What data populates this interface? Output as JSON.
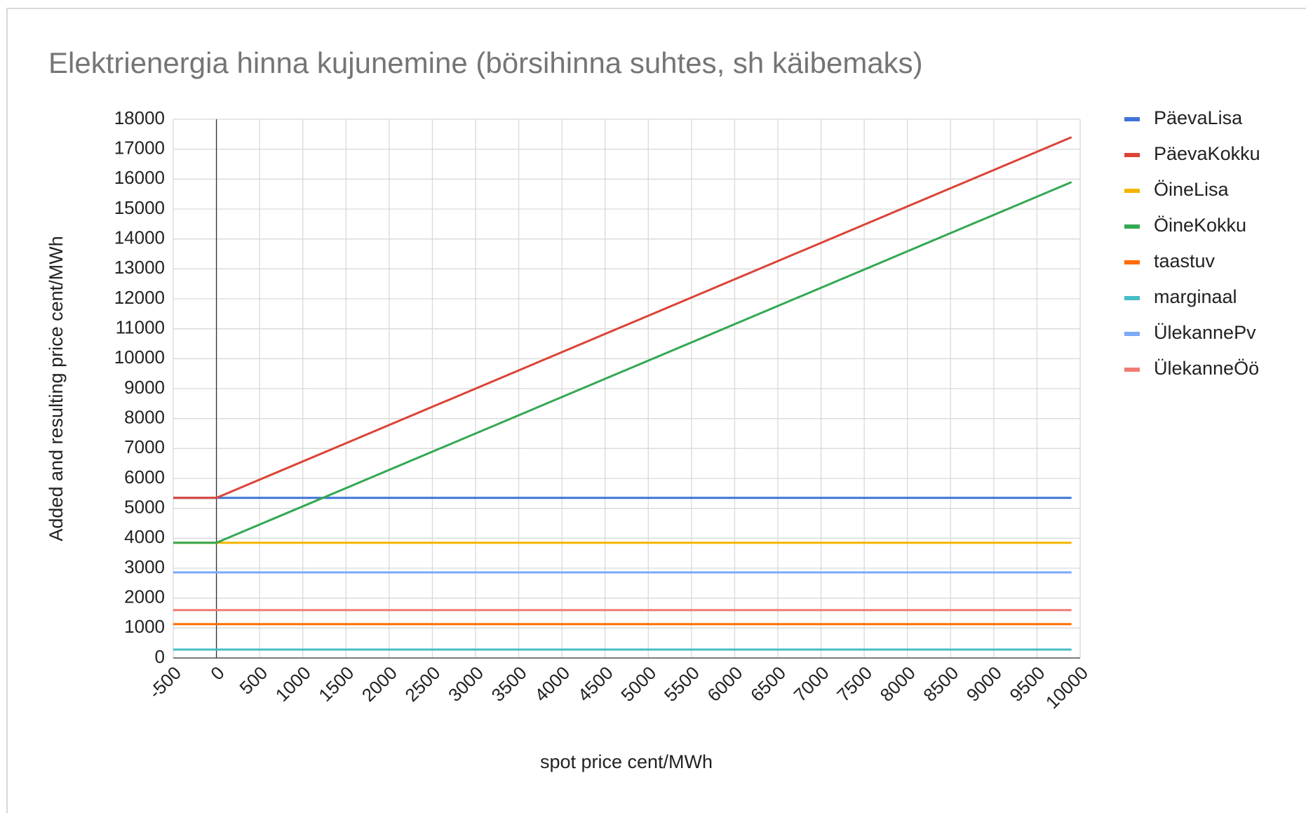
{
  "chart_data": {
    "type": "line",
    "title": "Elektrienergia hinna kujunemine (börsihinna suhtes, sh käibemaks)",
    "xlabel": "spot price cent/MWh",
    "ylabel": "Added and resulting price cent/MWh",
    "x": [
      -500,
      0,
      9900
    ],
    "series": [
      {
        "name": "PäevaLisa",
        "color": "#3f74d6",
        "values": [
          5350,
          5350,
          5350
        ]
      },
      {
        "name": "PäevaKokku",
        "color": "#db4437",
        "values": [
          5350,
          5350,
          17400
        ]
      },
      {
        "name": "ÖineLisa",
        "color": "#f4b400",
        "values": [
          3850,
          3850,
          3850
        ]
      },
      {
        "name": "ÖineKokku",
        "color": "#34a853",
        "values": [
          3850,
          3850,
          15900
        ]
      },
      {
        "name": "taastuv",
        "color": "#ff6d01",
        "values": [
          1130,
          1130,
          1130
        ]
      },
      {
        "name": "marginaal",
        "color": "#46bdc6",
        "values": [
          280,
          280,
          280
        ]
      },
      {
        "name": "ÜlekannePv",
        "color": "#7baaf7",
        "values": [
          2860,
          2860,
          2860
        ]
      },
      {
        "name": "ÜlekanneÖö",
        "color": "#f07b72",
        "values": [
          1600,
          1600,
          1600
        ]
      }
    ],
    "xlim": [
      -500,
      10000
    ],
    "xticks": [
      -500,
      0,
      500,
      1000,
      1500,
      2000,
      2500,
      3000,
      3500,
      4000,
      4500,
      5000,
      5500,
      6000,
      6500,
      7000,
      7500,
      8000,
      8500,
      9000,
      9500,
      10000
    ],
    "ylim": [
      0,
      18000
    ],
    "yticks": [
      0,
      1000,
      2000,
      3000,
      4000,
      5000,
      6000,
      7000,
      8000,
      9000,
      10000,
      11000,
      12000,
      13000,
      14000,
      15000,
      16000,
      17000,
      18000
    ],
    "grid": true,
    "legend": "right"
  }
}
